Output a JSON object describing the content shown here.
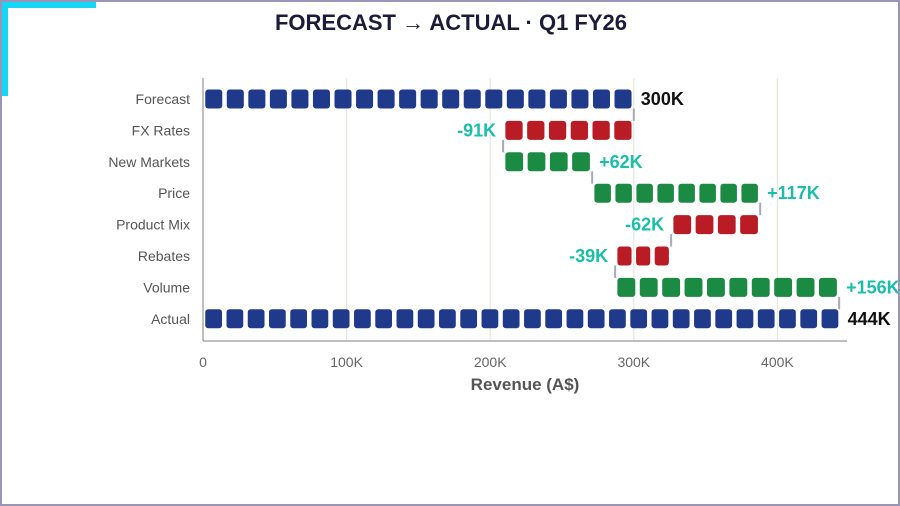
{
  "chart_data": {
    "type": "bar",
    "subtype": "waterfall",
    "title": "FORECAST → ACTUAL · Q1 FY26",
    "xlabel": "Revenue (A$)",
    "ylabel": "",
    "xlim": [
      0,
      450000
    ],
    "x_ticks": [
      {
        "value": 0,
        "label": "0"
      },
      {
        "value": 100000,
        "label": "100K"
      },
      {
        "value": 200000,
        "label": "200K"
      },
      {
        "value": 300000,
        "label": "300K"
      },
      {
        "value": 400000,
        "label": "400K"
      }
    ],
    "grid": true,
    "categories": [
      "Forecast",
      "FX Rates",
      "New Markets",
      "Price",
      "Product Mix",
      "Rebates",
      "Volume",
      "Actual"
    ],
    "steps": [
      {
        "category": "Forecast",
        "kind": "total",
        "value": 300000,
        "label": "300K"
      },
      {
        "category": "FX Rates",
        "kind": "delta",
        "value": -91000,
        "label": "-91K"
      },
      {
        "category": "New Markets",
        "kind": "delta",
        "value": 62000,
        "label": "+62K"
      },
      {
        "category": "Price",
        "kind": "delta",
        "value": 117000,
        "label": "+117K"
      },
      {
        "category": "Product Mix",
        "kind": "delta",
        "value": -62000,
        "label": "-62K"
      },
      {
        "category": "Rebates",
        "kind": "delta",
        "value": -39000,
        "label": "-39K"
      },
      {
        "category": "Volume",
        "kind": "delta",
        "value": 156000,
        "label": "+156K"
      },
      {
        "category": "Actual",
        "kind": "total",
        "value": 444000,
        "label": "444K"
      }
    ],
    "colors": {
      "total": "#1f3a8a",
      "increase": "#1b8a43",
      "decrease": "#b91c24",
      "delta_label": "#19bfaa",
      "total_label": "#111111",
      "connector": "#a8a8b8",
      "grid": "#e8e8dc",
      "axis": "#aaaaaa"
    }
  }
}
